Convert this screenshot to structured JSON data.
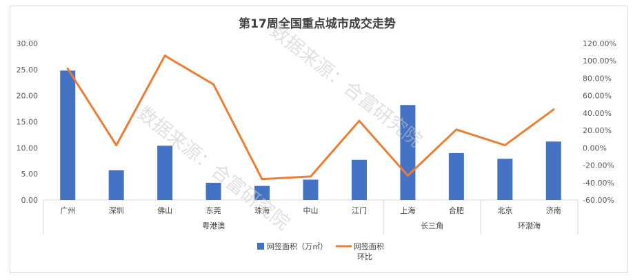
{
  "chart_data": {
    "type": "bar",
    "title": "第17周全国重点城市成交走势",
    "categories": [
      "广州",
      "深圳",
      "佛山",
      "东莞",
      "珠海",
      "中山",
      "江门",
      "上海",
      "合肥",
      "北京",
      "济南"
    ],
    "groups": [
      {
        "label": "粤港澳",
        "start": 0,
        "end": 6
      },
      {
        "label": "长三角",
        "start": 7,
        "end": 8
      },
      {
        "label": "环渤海",
        "start": 9,
        "end": 10
      }
    ],
    "series": [
      {
        "name": "网签面积（万㎡）",
        "type": "bar",
        "axis": "left",
        "color": "#4472c4",
        "values": [
          24.8,
          5.7,
          10.4,
          3.3,
          2.7,
          3.9,
          7.7,
          18.2,
          9.0,
          7.9,
          11.2
        ]
      },
      {
        "name": "网签面积环比",
        "type": "line",
        "axis": "right",
        "color": "#ed7d31",
        "values": [
          91,
          3,
          106,
          73,
          -36,
          -33,
          31,
          -32,
          21,
          3,
          44
        ]
      }
    ],
    "y_left": {
      "min": 0,
      "max": 30,
      "step": 5,
      "tick_labels": [
        "0.00",
        "5.00",
        "10.00",
        "15.00",
        "20.00",
        "25.00",
        "30.00"
      ]
    },
    "y_right": {
      "min": -60,
      "max": 120,
      "step": 20,
      "tick_labels": [
        "-60.00%",
        "-40.00%",
        "-20.00%",
        "0.00%",
        "20.00%",
        "40.00%",
        "60.00%",
        "80.00%",
        "100.00%",
        "120.00%"
      ]
    },
    "grid": false,
    "legend_position": "bottom",
    "watermark": "数据来源：合富研究院"
  }
}
